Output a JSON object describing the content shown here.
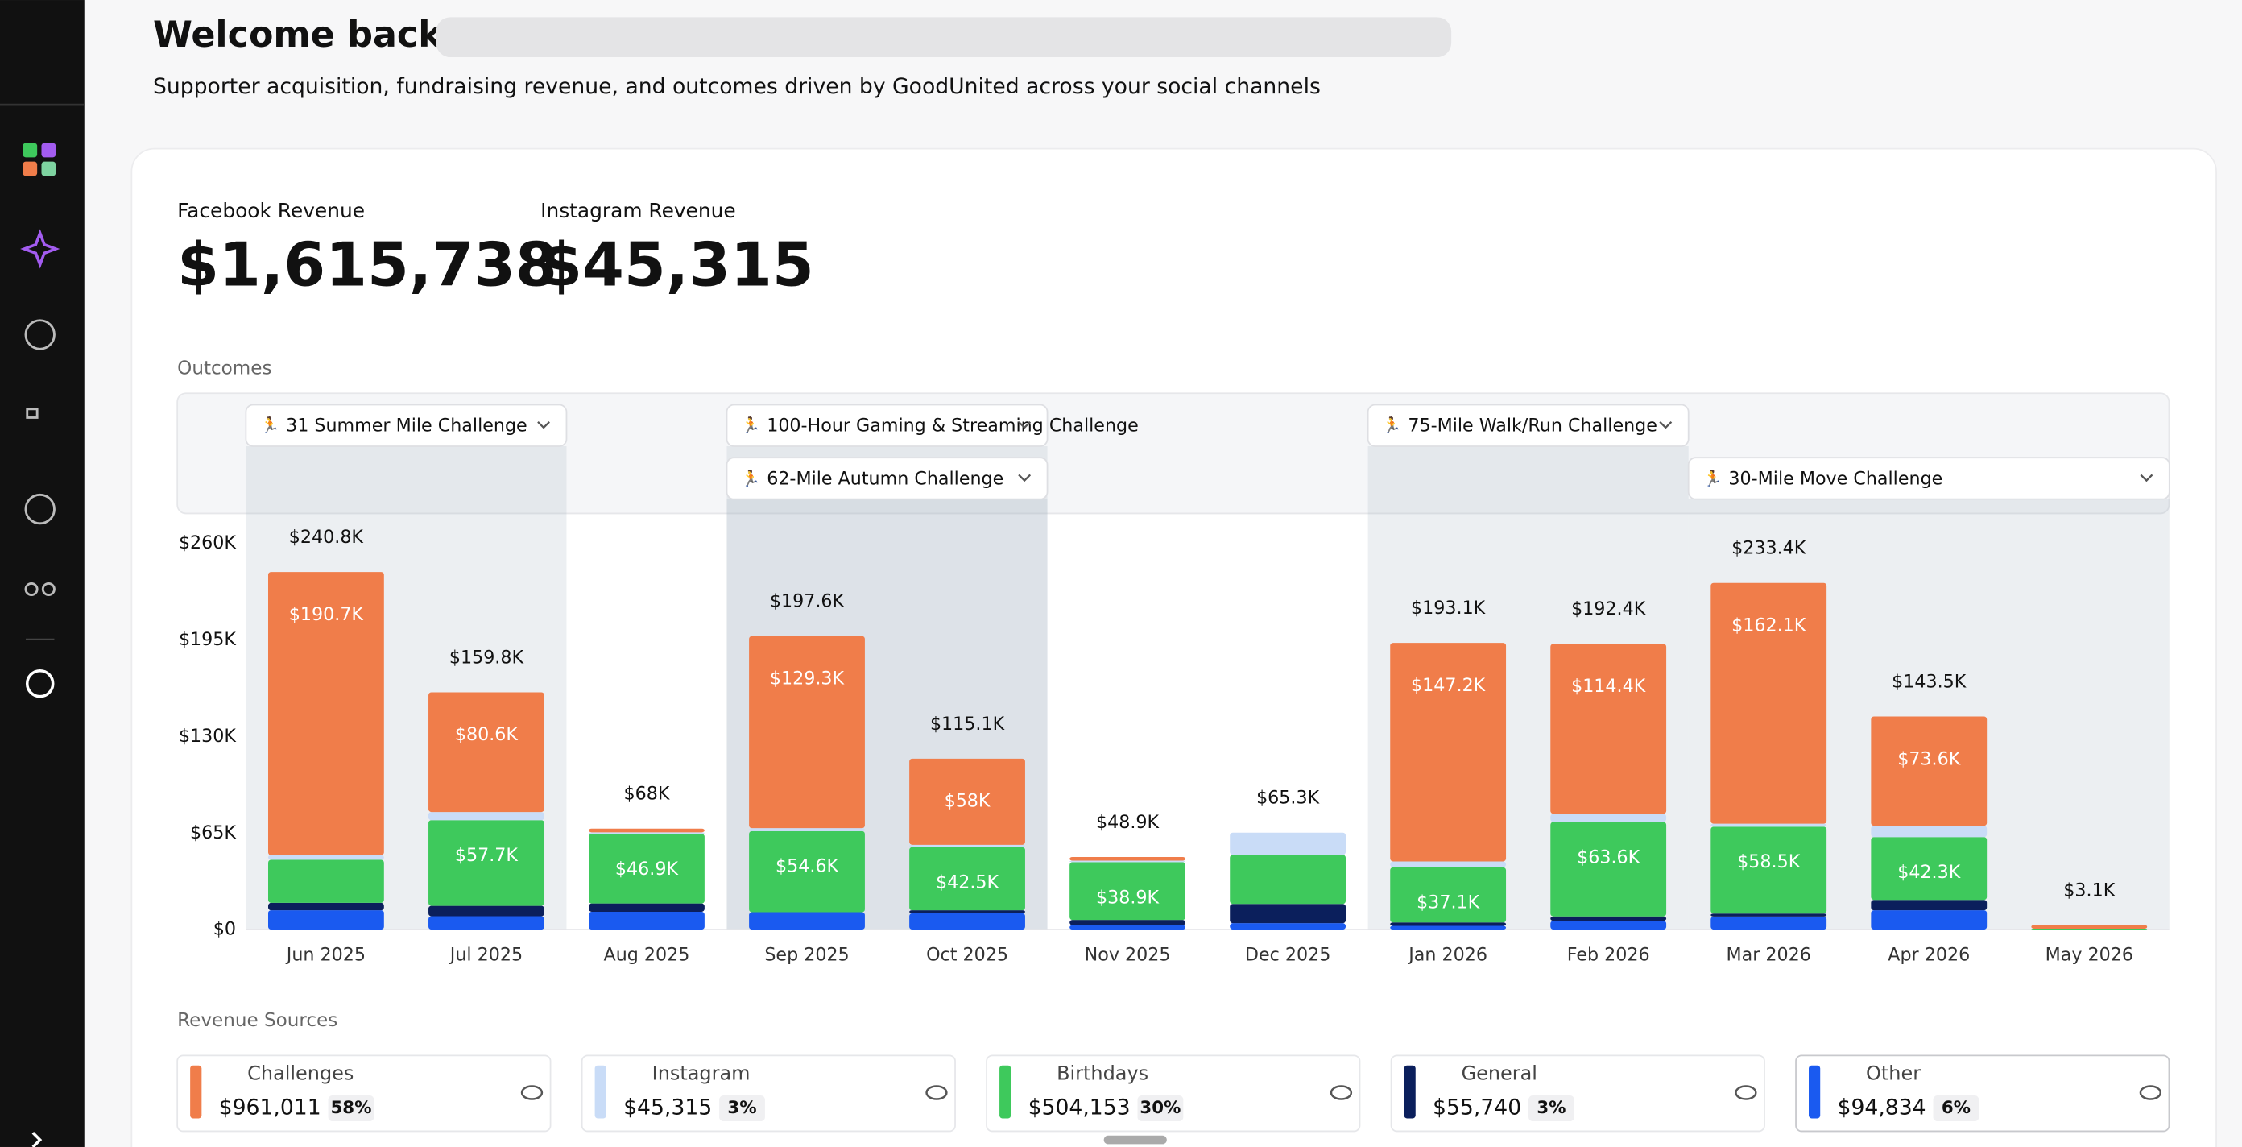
{
  "header": {
    "title": "Welcome back,",
    "subtitle": "Supporter acquisition, fundraising revenue, and outcomes driven by GoodUnited across your social channels"
  },
  "kpis": [
    {
      "label": "Facebook Revenue",
      "value": "$1,615,738"
    },
    {
      "label": "Instagram Revenue",
      "value": "$45,315"
    }
  ],
  "chart_data": {
    "type": "stacked-bar",
    "title": "Outcomes",
    "categories": [
      "Jun 2025",
      "Jul 2025",
      "Aug 2025",
      "Sep 2025",
      "Oct 2025",
      "Nov 2025",
      "Dec 2025",
      "Jan 2026",
      "Feb 2026",
      "Mar 2026",
      "Apr 2026",
      "May 2026"
    ],
    "ylim": [
      0,
      260000
    ],
    "yticks": [
      {
        "value": 0,
        "label": "$0"
      },
      {
        "value": 65000,
        "label": "$65K"
      },
      {
        "value": 130000,
        "label": "$130K"
      },
      {
        "value": 195000,
        "label": "$195K"
      },
      {
        "value": 260000,
        "label": "$260K"
      }
    ],
    "series": [
      {
        "name": "Other",
        "color": "#1a5af0",
        "values": [
          13000,
          9000,
          12000,
          11700,
          11000,
          3000,
          4300,
          2500,
          5900,
          8800,
          13000,
          0
        ]
      },
      {
        "name": "General",
        "color": "#0b1f5c",
        "values": [
          5000,
          7000,
          5600,
          0,
          2000,
          3500,
          13000,
          2300,
          3000,
          2000,
          7000,
          0
        ]
      },
      {
        "name": "Birthdays",
        "color": "#3ec95c",
        "values": [
          29000,
          57700,
          46900,
          54600,
          42500,
          38900,
          33000,
          37100,
          63600,
          58500,
          42300,
          600
        ],
        "value_labels": [
          null,
          "$57.7K",
          "$46.9K",
          "$54.6K",
          "$42.5K",
          "$38.9K",
          null,
          "$37.1K",
          "$63.6K",
          "$58.5K",
          "$42.3K",
          null
        ]
      },
      {
        "name": "Instagram",
        "color": "#c9dcf7",
        "values": [
          3100,
          5500,
          1000,
          2000,
          1600,
          1000,
          15000,
          4000,
          5500,
          2000,
          7600,
          0
        ]
      },
      {
        "name": "Challenges",
        "color": "#f07d4a",
        "values": [
          190700,
          80600,
          2500,
          129300,
          58000,
          2500,
          0,
          147200,
          114400,
          162100,
          73600,
          2500
        ],
        "value_labels": [
          "$190.7K",
          "$80.6K",
          null,
          "$129.3K",
          "$58K",
          null,
          null,
          "$147.2K",
          "$114.4K",
          "$162.1K",
          "$73.6K",
          null
        ]
      }
    ],
    "totals": [
      240800,
      159800,
      68000,
      197600,
      115100,
      48900,
      65300,
      193100,
      192400,
      233400,
      143500,
      3100
    ],
    "total_labels": [
      "$240.8K",
      "$159.8K",
      "$68K",
      "$197.6K",
      "$115.1K",
      "$48.9K",
      "$65.3K",
      "$193.1K",
      "$192.4K",
      "$233.4K",
      "$143.5K",
      "$3.1K"
    ],
    "campaigns": [
      {
        "name": "31 Summer Mile Challenge",
        "from": "Jun 2025",
        "to": "Jul 2025",
        "row": 0
      },
      {
        "name": "100-Hour Gaming & Streaming Challenge",
        "from": "Sep 2025",
        "to": "Oct 2025",
        "row": 0
      },
      {
        "name": "62-Mile Autumn Challenge",
        "from": "Sep 2025",
        "to": "Oct 2025",
        "row": 1
      },
      {
        "name": "75-Mile Walk/Run Challenge",
        "from": "Jan 2026",
        "to": "Feb 2026",
        "row": 0
      },
      {
        "name": "30-Mile Move Challenge",
        "from": "Mar 2026",
        "to": "May 2026",
        "row": 1
      }
    ]
  },
  "revenue_sources": {
    "title": "Revenue Sources",
    "items": [
      {
        "name": "Challenges",
        "value": "$961,011",
        "share": "58%",
        "color": "#f07d4a"
      },
      {
        "name": "Instagram",
        "value": "$45,315",
        "share": "3%",
        "color": "#c9dcf7"
      },
      {
        "name": "Birthdays",
        "value": "$504,153",
        "share": "30%",
        "color": "#3ec95c"
      },
      {
        "name": "General",
        "value": "$55,740",
        "share": "3%",
        "color": "#0b1f5c"
      },
      {
        "name": "Other",
        "value": "$94,834",
        "share": "6%",
        "color": "#1a5af0"
      }
    ]
  }
}
